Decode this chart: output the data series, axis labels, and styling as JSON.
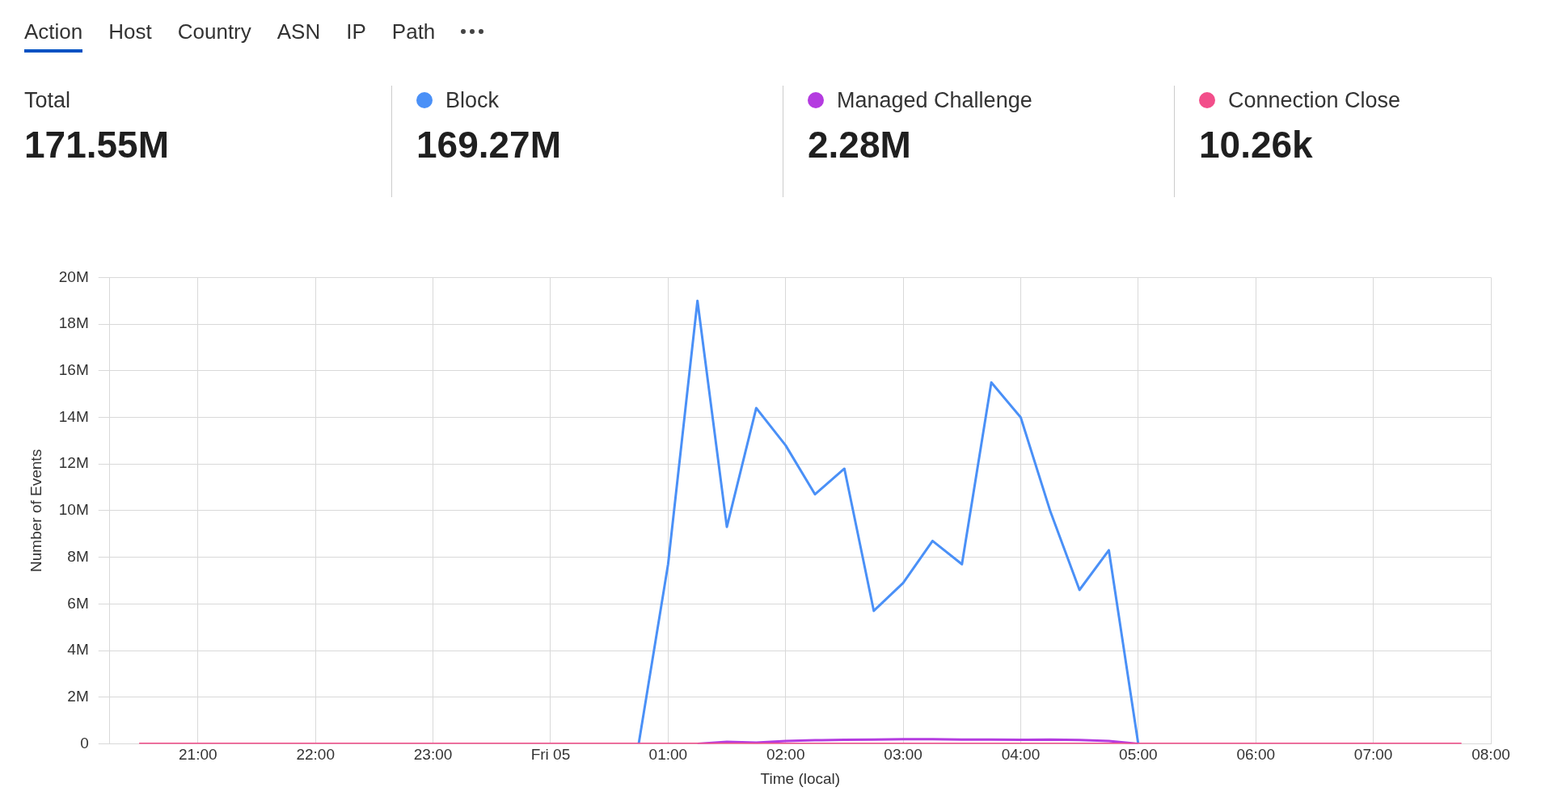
{
  "chart_data": [
    {
      "type": "other",
      "annotations": [
        "Action",
        "Host",
        "Country",
        "ASN",
        "IP",
        "Path"
      ],
      "categories": [
        "Total",
        "Block",
        "Managed Challenge",
        "Connection Close"
      ],
      "values": [
        171550000,
        169270000,
        2280000,
        10260
      ],
      "value_labels": [
        "171.55M",
        "169.27M",
        "2.28M",
        "10.26k"
      ],
      "colors": [
        null,
        "#4a90f7",
        "#b43be0",
        "#f24e8a"
      ]
    },
    {
      "type": "line",
      "xlabel": "Time (local)",
      "ylabel": "Number of Events",
      "x": [
        "--01-04T20:30",
        "--01-04T20:45",
        "--01-04T21:00",
        "--01-04T21:15",
        "--01-04T21:30",
        "--01-04T21:45",
        "--01-04T22:00",
        "--01-04T22:15",
        "--01-04T22:30",
        "--01-04T22:45",
        "--01-04T23:00",
        "--01-04T23:15",
        "--01-04T23:30",
        "--01-04T23:45",
        "--01-05T00:00",
        "--01-05T00:15",
        "--01-05T00:30",
        "--01-05T00:45",
        "--01-05T01:00",
        "--01-05T01:15",
        "--01-05T01:30",
        "--01-05T01:45",
        "--01-05T02:00",
        "--01-05T02:15",
        "--01-05T02:30",
        "--01-05T02:45",
        "--01-05T03:00",
        "--01-05T03:15",
        "--01-05T03:30",
        "--01-05T03:45",
        "--01-05T04:00",
        "--01-05T04:15",
        "--01-05T04:30",
        "--01-05T04:45",
        "--01-05T05:00",
        "--01-05T05:15",
        "--01-05T05:30",
        "--01-05T05:45",
        "--01-05T06:00",
        "--01-05T06:15",
        "--01-05T06:30",
        "--01-05T06:45",
        "--01-05T07:00",
        "--01-05T07:15",
        "--01-05T07:30",
        "--01-05T07:45"
      ],
      "series": [
        {
          "color": "#4a90f7",
          "values": [
            null,
            null,
            null,
            null,
            null,
            null,
            null,
            null,
            null,
            null,
            null,
            null,
            null,
            null,
            null,
            null,
            null,
            0,
            7700000,
            19000000,
            9300000,
            14400000,
            12800000,
            10700000,
            11800000,
            5700000,
            6900000,
            8700000,
            7700000,
            15500000,
            14000000,
            10000000,
            6600000,
            8300000,
            0,
            null,
            null,
            null,
            null,
            null,
            null,
            null,
            null,
            null,
            null,
            null
          ]
        },
        {
          "color": "#b43be0",
          "values": [
            null,
            null,
            null,
            null,
            null,
            null,
            null,
            null,
            null,
            null,
            null,
            null,
            null,
            null,
            null,
            null,
            null,
            null,
            null,
            0,
            80000,
            50000,
            120000,
            150000,
            170000,
            180000,
            200000,
            200000,
            180000,
            180000,
            170000,
            180000,
            160000,
            120000,
            0,
            null,
            null,
            null,
            null,
            null,
            null,
            null,
            null,
            null,
            null,
            null
          ]
        },
        {
          "color": "#f24e8a",
          "values": [
            0,
            0,
            0,
            0,
            0,
            0,
            0,
            0,
            0,
            0,
            0,
            0,
            0,
            0,
            0,
            0,
            0,
            0,
            0,
            0,
            0,
            0,
            0,
            0,
            0,
            0,
            0,
            0,
            0,
            0,
            0,
            0,
            0,
            0,
            0,
            0,
            0,
            0,
            0,
            0,
            0,
            0,
            0,
            0,
            0,
            0
          ]
        }
      ],
      "xlim": [
        "--01-04T20:15",
        "--01-05T08:00"
      ],
      "xticks": [
        {
          "value": "--01-04T21:00",
          "label": "21:00"
        },
        {
          "value": "--01-04T22:00",
          "label": "22:00"
        },
        {
          "value": "--01-04T23:00",
          "label": "23:00"
        },
        {
          "value": "--01-05T00:00",
          "label": "Fri 05"
        },
        {
          "value": "--01-05T01:00",
          "label": "01:00"
        },
        {
          "value": "--01-05T02:00",
          "label": "02:00"
        },
        {
          "value": "--01-05T03:00",
          "label": "03:00"
        },
        {
          "value": "--01-05T04:00",
          "label": "04:00"
        },
        {
          "value": "--01-05T05:00",
          "label": "05:00"
        },
        {
          "value": "--01-05T06:00",
          "label": "06:00"
        },
        {
          "value": "--01-05T07:00",
          "label": "07:00"
        },
        {
          "value": "--01-05T08:00",
          "label": "08:00"
        }
      ],
      "ylim": [
        0,
        20000000
      ],
      "yticks": [
        0,
        {
          "value": 2000000,
          "label": "2M"
        },
        {
          "value": 4000000,
          "label": "4M"
        },
        {
          "value": 6000000,
          "label": "6M"
        },
        {
          "value": 8000000,
          "label": "8M"
        },
        {
          "value": 10000000,
          "label": "10M"
        },
        {
          "value": 12000000,
          "label": "12M"
        },
        {
          "value": 14000000,
          "label": "14M"
        },
        {
          "value": 16000000,
          "label": "16M"
        },
        {
          "value": 18000000,
          "label": "18M"
        },
        {
          "value": 20000000,
          "label": "20M"
        }
      ],
      "grid": true,
      "legend": false,
      "marker": "none",
      "line_style": "solid"
    }
  ]
}
